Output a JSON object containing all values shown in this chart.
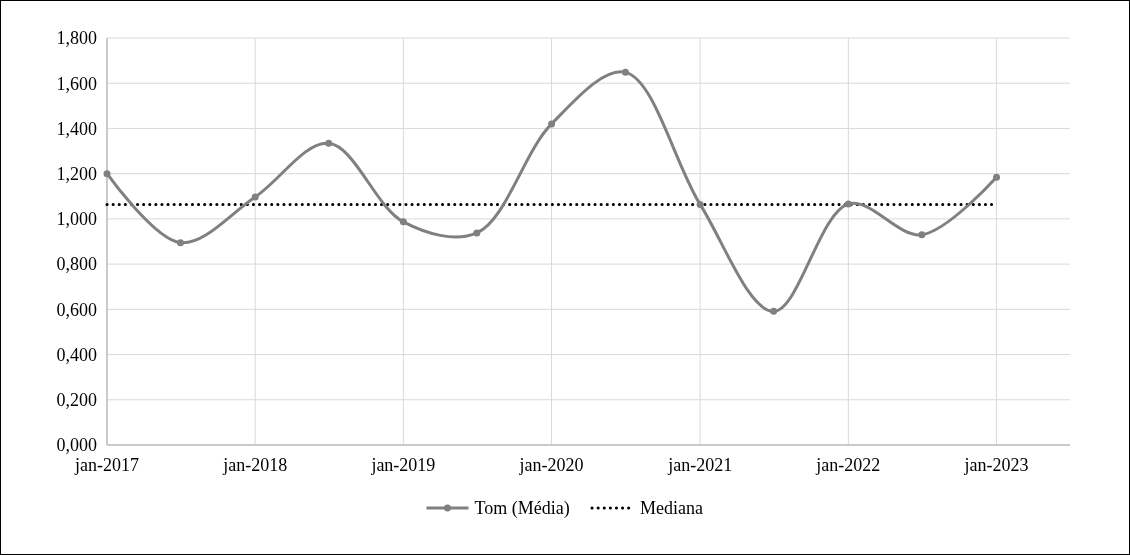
{
  "chart_data": {
    "type": "line",
    "x": [
      "2017-01",
      "2017-07",
      "2018-01",
      "2018-07",
      "2019-01",
      "2019-07",
      "2020-01",
      "2020-07",
      "2021-01",
      "2021-07",
      "2022-01",
      "2022-07",
      "2023-01"
    ],
    "series": [
      {
        "name": "Tom (Média)",
        "color": "#808080",
        "values": [
          1.2,
          0.895,
          1.097,
          1.334,
          0.987,
          0.938,
          1.42,
          1.648,
          1.064,
          0.591,
          1.066,
          0.93,
          1.184
        ]
      }
    ],
    "ref_lines": [
      {
        "axis": "y",
        "value": 1.064,
        "label": "Mediana",
        "color": "#000000",
        "line_style": "dotted"
      }
    ],
    "xlim": [
      "2017-01",
      "2023-07"
    ],
    "xticks": [
      {
        "value": "2017-01",
        "label": "jan-2017"
      },
      {
        "value": "2018-01",
        "label": "jan-2018"
      },
      {
        "value": "2019-01",
        "label": "jan-2019"
      },
      {
        "value": "2020-01",
        "label": "jan-2020"
      },
      {
        "value": "2021-01",
        "label": "jan-2021"
      },
      {
        "value": "2022-01",
        "label": "jan-2022"
      },
      {
        "value": "2023-01",
        "label": "jan-2023"
      }
    ],
    "ylim": [
      0,
      1.8
    ],
    "yticks": [
      {
        "value": 0,
        "label": "0,000"
      },
      {
        "value": 0.2,
        "label": "0,200"
      },
      {
        "value": 0.4,
        "label": "0,400"
      },
      {
        "value": 0.6,
        "label": "0,600"
      },
      {
        "value": 0.8,
        "label": "0,800"
      },
      {
        "value": 1,
        "label": "1,000"
      },
      {
        "value": 1.2,
        "label": "1,200"
      },
      {
        "value": 1.4,
        "label": "1,400"
      },
      {
        "value": 1.6,
        "label": "1,600"
      },
      {
        "value": 1.8,
        "label": "1,800"
      }
    ],
    "grid": true,
    "legend": "bottom",
    "marker": "circle",
    "line_style": "solid"
  }
}
